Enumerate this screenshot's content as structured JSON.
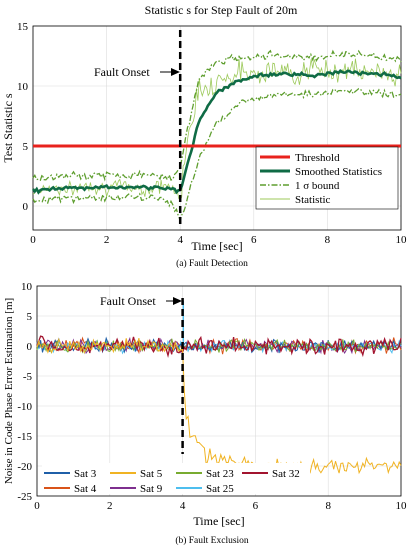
{
  "chart_data": [
    {
      "type": "line",
      "title": "Statistic s for Step Fault of 20m",
      "xlabel": "Time [sec]",
      "ylabel": "Test Statistic s",
      "xlim": [
        0,
        10
      ],
      "ylim": [
        -2,
        15
      ],
      "x_ticks": [
        "0",
        "2",
        "4",
        "6",
        "8",
        "10"
      ],
      "y_ticks": [
        "0",
        "5",
        "10",
        "15"
      ],
      "grid": true,
      "legend_position": "lower-right",
      "caption": "(a)  Fault Detection",
      "annotation": {
        "text": "Fault Onset",
        "x": 4
      },
      "fault_line_x": 4,
      "threshold": 5,
      "series": [
        {
          "name": "Threshold",
          "color": "#e8221d",
          "style": "solid-thick",
          "x": [
            0,
            10
          ],
          "values": [
            5,
            5
          ]
        },
        {
          "name": "Smoothed Statistics",
          "color": "#0f6b45",
          "style": "solid-thick",
          "x": [
            0,
            0.5,
            1,
            1.5,
            2,
            2.5,
            3,
            3.5,
            3.8,
            4.0,
            4.2,
            4.5,
            5,
            5.5,
            6,
            6.5,
            7,
            7.5,
            8,
            8.5,
            9,
            9.5,
            10
          ],
          "values": [
            1.3,
            1.4,
            1.5,
            1.5,
            1.6,
            1.5,
            1.6,
            1.5,
            1.4,
            1.2,
            3.5,
            7.0,
            9.5,
            10.3,
            10.8,
            11.0,
            11.0,
            10.9,
            11.0,
            11.2,
            11.1,
            11.0,
            10.7
          ]
        },
        {
          "name": "1 σ bound",
          "color": "#5e9e2e",
          "style": "dash-dot",
          "x": [
            0,
            0.5,
            1,
            1.5,
            2,
            2.5,
            3,
            3.5,
            3.8,
            4.0,
            4.2,
            4.5,
            5,
            5.5,
            6,
            6.5,
            7,
            7.5,
            8,
            8.5,
            9,
            9.5,
            10
          ],
          "values_upper": [
            2.3,
            2.4,
            2.5,
            2.5,
            2.6,
            2.5,
            2.6,
            2.5,
            2.5,
            3.0,
            6.5,
            10.5,
            12.0,
            12.3,
            12.5,
            12.6,
            12.5,
            12.4,
            12.5,
            12.7,
            12.6,
            12.4,
            12.2
          ],
          "values_lower": [
            0.5,
            0.6,
            0.6,
            0.7,
            0.7,
            0.7,
            0.7,
            0.6,
            0.2,
            -1.2,
            0.5,
            4.0,
            7.0,
            8.3,
            9.0,
            9.3,
            9.4,
            9.3,
            9.4,
            9.6,
            9.5,
            9.4,
            9.2
          ]
        },
        {
          "name": "Statistic",
          "color": "#9cc95a",
          "style": "thin-noisy",
          "x": [
            0,
            0.5,
            1,
            1.5,
            2,
            2.5,
            3,
            3.5,
            3.8,
            4.0,
            4.2,
            4.5,
            5,
            5.5,
            6,
            6.5,
            7,
            7.5,
            8,
            8.5,
            9,
            9.5,
            10
          ],
          "values": [
            1.2,
            1.6,
            1.3,
            1.8,
            1.5,
            1.7,
            1.4,
            1.7,
            1.5,
            0.5,
            6.0,
            9.5,
            10.5,
            11.0,
            11.2,
            11.3,
            11.0,
            11.4,
            11.2,
            11.5,
            11.0,
            11.3,
            10.8
          ]
        }
      ]
    },
    {
      "type": "line",
      "xlabel": "Time [sec]",
      "ylabel": "Noise in Code Phase Error Estimation [m]",
      "xlim": [
        0,
        10
      ],
      "ylim": [
        -25,
        10
      ],
      "x_ticks": [
        "0",
        "2",
        "4",
        "6",
        "8",
        "10"
      ],
      "y_ticks": [
        "10",
        "5",
        "0",
        "-5",
        "-10",
        "-15",
        "-20",
        "-25"
      ],
      "grid": true,
      "legend_position": "bottom",
      "caption": "(b)  Fault Exclusion",
      "annotation": {
        "text": "Fault Onset",
        "x": 4
      },
      "fault_line_x": 4,
      "series": [
        {
          "name": "Sat 3",
          "color": "#1f5fa8",
          "x": [
            0,
            10
          ],
          "values": [
            0,
            0
          ]
        },
        {
          "name": "Sat 5",
          "color": "#f0b323",
          "x": [
            0,
            3.9,
            4.0,
            4.1,
            4.3,
            4.6,
            5.0,
            5.5,
            6,
            7,
            8,
            9,
            10
          ],
          "values": [
            0,
            0,
            -2,
            -14,
            -16,
            -18,
            -19,
            -19.5,
            -20,
            -20,
            -20,
            -20,
            -20
          ]
        },
        {
          "name": "Sat 23",
          "color": "#78ab30",
          "x": [
            0,
            10
          ],
          "values": [
            0,
            0
          ]
        },
        {
          "name": "Sat 32",
          "color": "#a2142f",
          "x": [
            0,
            10
          ],
          "values": [
            0,
            0
          ]
        },
        {
          "name": "Sat 4",
          "color": "#d95319",
          "x": [
            0,
            10
          ],
          "values": [
            0,
            0
          ]
        },
        {
          "name": "Sat 9",
          "color": "#7e2f8e",
          "x": [
            0,
            10
          ],
          "values": [
            0,
            0
          ]
        },
        {
          "name": "Sat 25",
          "color": "#4dbeee",
          "x": [
            0,
            10
          ],
          "values": [
            0,
            0
          ]
        }
      ]
    }
  ]
}
